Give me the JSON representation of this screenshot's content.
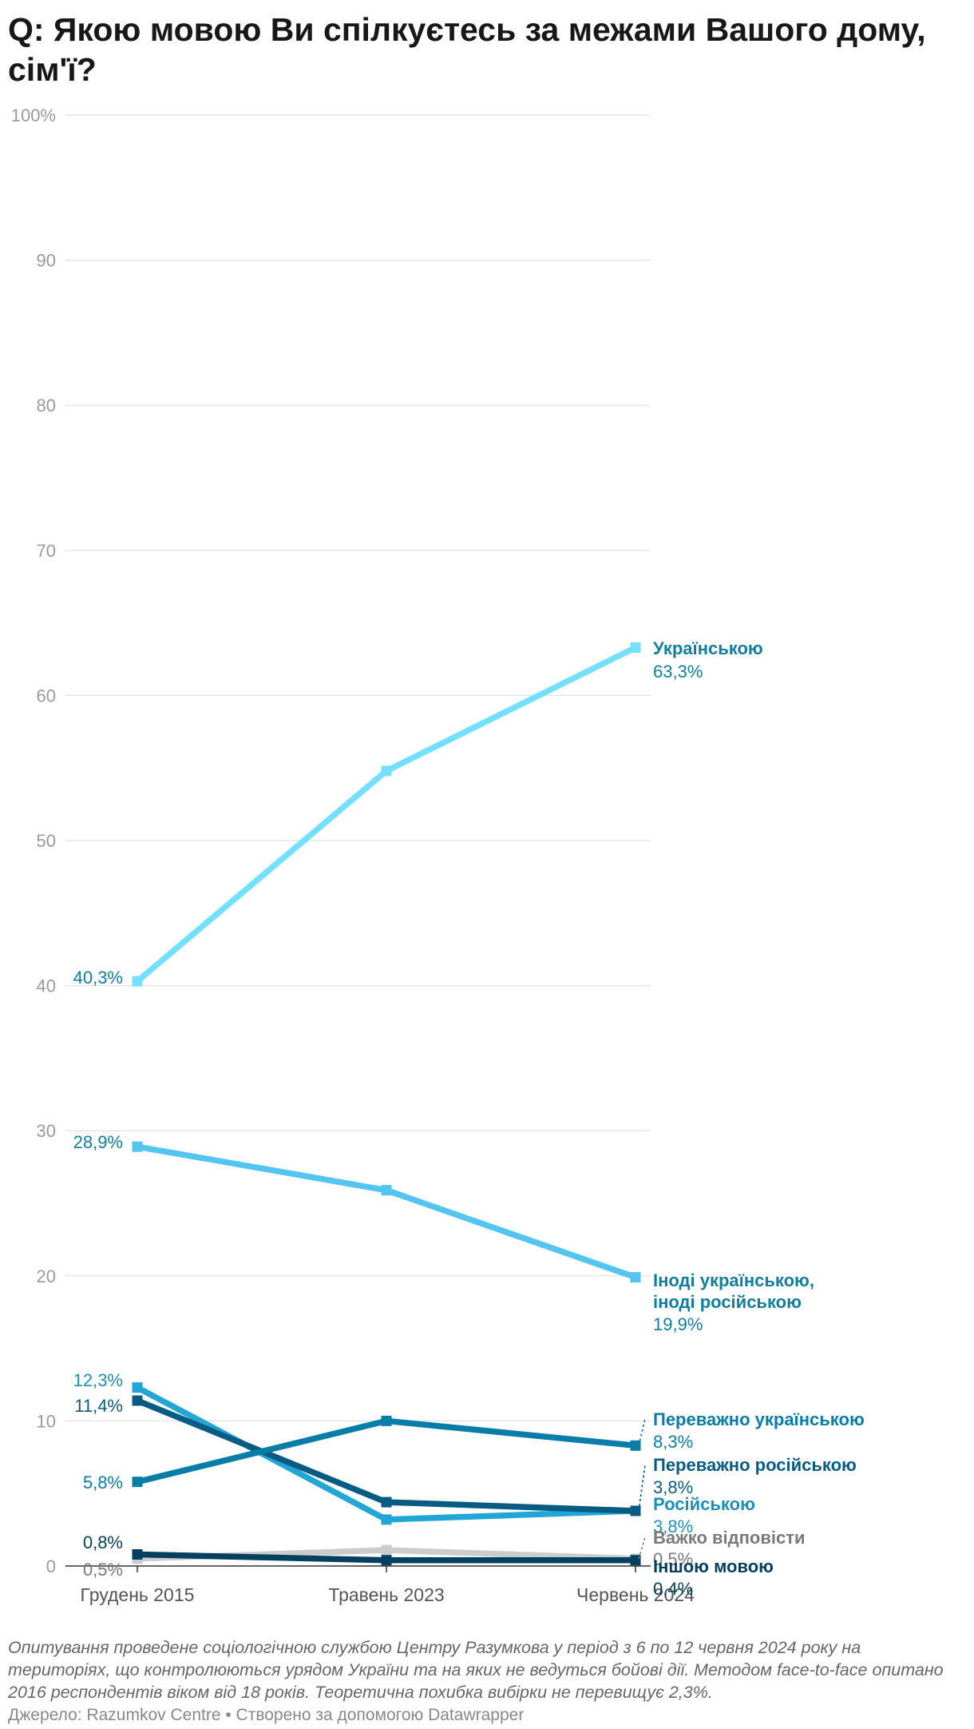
{
  "title": "Q: Якою мовою Ви спілкуєтесь за межами Вашого дому, сім'ї?",
  "note": "Опитування проведене соціологічною службою Центру Разумкова у період з 6 по 12 червня 2024 року на територіях, що контролюються урядом України та на яких не ведуться бойові дії. Методом face-to-face опитано 2016 респондентів віком від 18 років. Теоретична похибка вибірки не перевищує 2,3%.",
  "source": "Джерело: Razumkov Centre • Створено за допомогою Datawrapper",
  "chart_data": {
    "type": "line",
    "title": "Q: Якою мовою Ви спілкуєтесь за межами Вашого дому, сім'ї?",
    "xlabel": "",
    "ylabel": "",
    "categories": [
      "Грудень 2015",
      "Травень 2023",
      "Червень 2024"
    ],
    "ylim": [
      0,
      100
    ],
    "yticks": [
      0,
      10,
      20,
      30,
      40,
      50,
      60,
      70,
      80,
      90,
      100
    ],
    "ytick_labels": [
      "0",
      "10",
      "20",
      "30",
      "40",
      "50",
      "60",
      "70",
      "80",
      "90",
      "100%"
    ],
    "grid": true,
    "legend": "direct labels at line ends",
    "series": [
      {
        "name": "Українською",
        "values": [
          40.3,
          54.8,
          63.3
        ],
        "color": "#73e0fd",
        "start_label": "40,3%",
        "end_label": "63,3%",
        "label_color": "#0f7e9f"
      },
      {
        "name": "Іноді українською, іноді російською",
        "values": [
          28.9,
          25.9,
          19.9
        ],
        "color": "#54c5f0",
        "start_label": "28,9%",
        "end_label": "19,9%",
        "label_color": "#0f7e9f"
      },
      {
        "name": "Переважно українською",
        "values": [
          5.8,
          10.0,
          8.3
        ],
        "color": "#087da8",
        "start_label": "5,8%",
        "end_label": "8,3%",
        "label_color": "#087da8"
      },
      {
        "name": "Переважно російською",
        "values": [
          11.4,
          4.4,
          3.8
        ],
        "color": "#085b82",
        "start_label": "11,4%",
        "end_label": "3,8%",
        "label_color": "#085b82"
      },
      {
        "name": "Російською",
        "values": [
          12.3,
          3.2,
          3.8
        ],
        "color": "#22a6d6",
        "start_label": "12,3%",
        "end_label": "3,8%",
        "label_color": "#1a90bd"
      },
      {
        "name": "Важко відповісти",
        "values": [
          0.5,
          1.1,
          0.5
        ],
        "color": "#cccccc",
        "start_label": "0,5%",
        "end_label": "0,5%",
        "label_color": "#7a7a7a"
      },
      {
        "name": "Іншою мовою",
        "values": [
          0.8,
          0.4,
          0.4
        ],
        "color": "#033f5f",
        "start_label": "0,8%",
        "end_label": "0,4%",
        "label_color": "#033f5f"
      }
    ]
  }
}
